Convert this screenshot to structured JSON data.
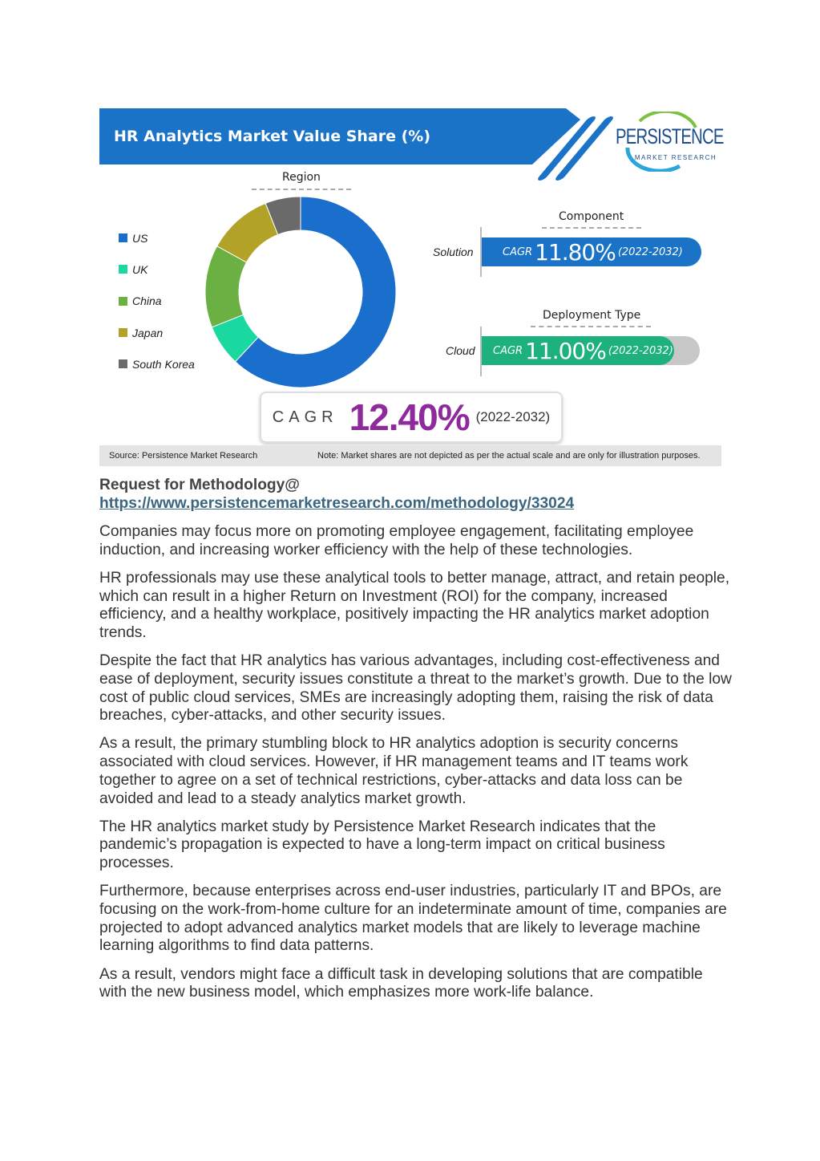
{
  "infographic": {
    "title": "HR Analytics Market Value Share (%)",
    "logo": {
      "name": "PERSISTENCE",
      "tagline": "MARKET RESEARCH"
    },
    "region_label": "Region",
    "component_label": "Component",
    "deployment_label": "Deployment Type",
    "component": {
      "row": "Solution",
      "cagr_label": "CAGR",
      "value": "11.80%",
      "years": "(2022-2032)",
      "color": "#1a73c7"
    },
    "deployment": {
      "row": "Cloud",
      "cagr_label": "CAGR",
      "value": "11.00%",
      "years": "(2022-2032)",
      "color": "#1db27d"
    },
    "overall": {
      "cagr_label": "CAGR",
      "value": "12.40%",
      "years": "(2022-2032)",
      "color": "#8e2a9c"
    },
    "source": "Source: Persistence Market Research",
    "note": "Note: Market shares are not depicted as per the actual scale and are only for illustration purposes."
  },
  "chart_data": {
    "type": "pie",
    "title": "Region",
    "categories": [
      "US",
      "UK",
      "China",
      "Japan",
      "South Korea"
    ],
    "values": [
      62,
      7,
      14,
      11,
      6
    ],
    "colors": [
      "#1a6fcc",
      "#19d9a0",
      "#6ab043",
      "#b3a228",
      "#6a6a6a"
    ],
    "legend": "left"
  },
  "article": {
    "request_label": "Request for Methodology@",
    "request_link": "https://www.persistencemarketresearch.com/methodology/33024",
    "paragraphs": [
      "Companies may focus more on promoting employee engagement, facilitating employee induction, and increasing worker efficiency with the help of these technologies.",
      "HR professionals may use these analytical tools to better manage, attract, and retain people, which can result in a higher Return on Investment (ROI) for the company, increased efficiency, and a healthy workplace, positively impacting the HR analytics market adoption trends.",
      "Despite the fact that HR analytics has various advantages, including cost-effectiveness and ease of deployment, security issues constitute a threat to the market’s growth. Due to the low cost of public cloud services, SMEs are increasingly adopting them, raising the risk of data breaches, cyber-attacks, and other security issues.",
      "As a result, the primary stumbling block to HR analytics adoption is security concerns associated with cloud services. However, if HR management teams and IT teams work together to agree on a set of technical restrictions, cyber-attacks and data loss can be avoided and lead to a steady analytics market growth.",
      "The HR analytics market study by Persistence Market Research indicates that the pandemic’s propagation is expected to have a long-term impact on critical business processes.",
      "Furthermore, because enterprises across end-user industries, particularly IT and BPOs, are focusing on the work-from-home culture for an indeterminate amount of time, companies are projected to adopt advanced analytics market models that are likely to leverage machine learning algorithms to find data patterns.",
      "As a result, vendors might face a difficult task in developing solutions that are compatible with the new business model, which emphasizes more work-life balance."
    ]
  }
}
